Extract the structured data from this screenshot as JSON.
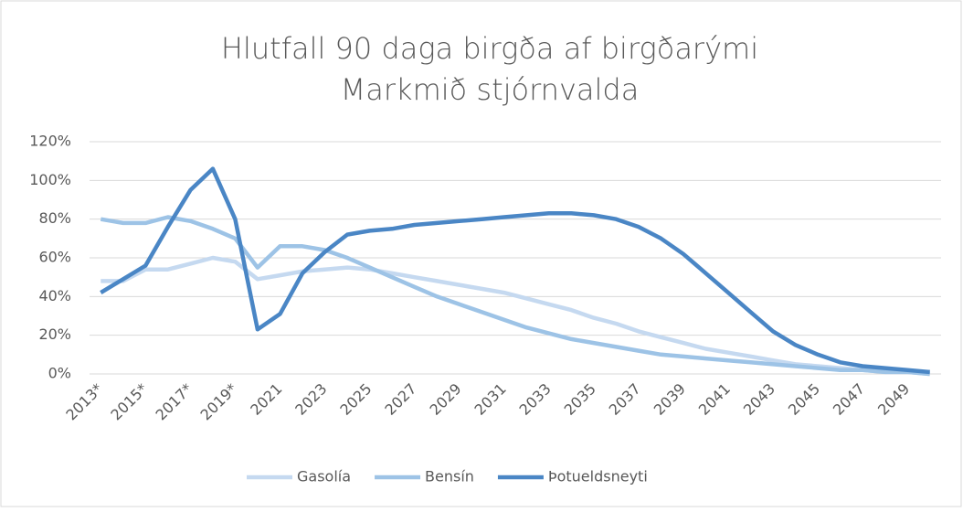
{
  "chart_data": {
    "type": "line",
    "title": "Hlutfall 90 daga birgða af birgðarými",
    "subtitle": "Markmið stjórnvalda",
    "categories": [
      "2013*",
      null,
      "2015*",
      null,
      "2017*",
      null,
      "2019*",
      null,
      "2021",
      null,
      "2023",
      null,
      "2025",
      null,
      "2027",
      null,
      "2029",
      null,
      "2031",
      null,
      "2033",
      null,
      "2035",
      null,
      "2037",
      null,
      "2039",
      null,
      "2041",
      null,
      "2043",
      null,
      "2045",
      null,
      "2047",
      null,
      "2049",
      null
    ],
    "series": [
      {
        "name": "Gasolía",
        "color": "#c5d9f0",
        "values": [
          48,
          48,
          54,
          54,
          57,
          60,
          58,
          49,
          51,
          53,
          54,
          55,
          54,
          52,
          50,
          48,
          46,
          44,
          42,
          39,
          36,
          33,
          29,
          26,
          22,
          19,
          16,
          13,
          11,
          9,
          7,
          5,
          4,
          3,
          2,
          1,
          1,
          0
        ]
      },
      {
        "name": "Bensín",
        "color": "#9dc3e6",
        "values": [
          80,
          78,
          78,
          81,
          79,
          75,
          70,
          55,
          66,
          66,
          64,
          60,
          55,
          50,
          45,
          40,
          36,
          32,
          28,
          24,
          21,
          18,
          16,
          14,
          12,
          10,
          9,
          8,
          7,
          6,
          5,
          4,
          3,
          2,
          2,
          1,
          1,
          0
        ]
      },
      {
        "name": "Þotueldsneyti",
        "color": "#4a86c5",
        "values": [
          42,
          49,
          56,
          76,
          95,
          106,
          80,
          23,
          31,
          52,
          63,
          72,
          74,
          75,
          77,
          78,
          79,
          80,
          81,
          82,
          83,
          83,
          82,
          80,
          76,
          70,
          62,
          52,
          42,
          32,
          22,
          15,
          10,
          6,
          4,
          3,
          2,
          1
        ]
      }
    ],
    "ylim": [
      0,
      120
    ],
    "yticks": [
      {
        "value": 0,
        "label": "0%"
      },
      {
        "value": 20,
        "label": "20%"
      },
      {
        "value": 40,
        "label": "40%"
      },
      {
        "value": 60,
        "label": "60%"
      },
      {
        "value": 80,
        "label": "80%"
      },
      {
        "value": 100,
        "label": "100%"
      },
      {
        "value": 120,
        "label": "120%"
      }
    ],
    "grid": true,
    "legend": "bottom"
  }
}
